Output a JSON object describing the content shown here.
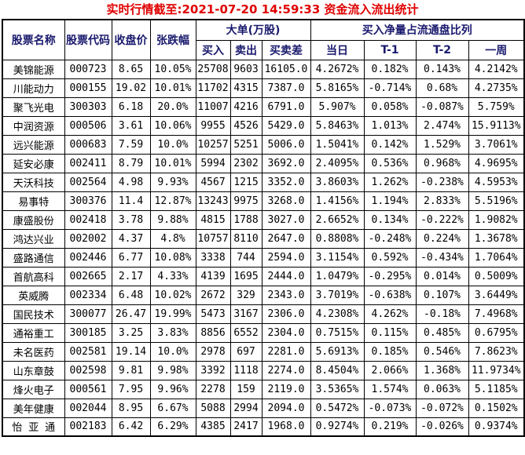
{
  "title": "实时行情截至:2021-07-20 14:59:33 资金流入流出统计",
  "colors": {
    "title_red": "#e00000",
    "header_navy": "#1a1a6e",
    "name_blue": "#1b5e91",
    "code_blue": "#2973ae",
    "border_black": "#000000",
    "data_black": "#000000"
  },
  "table": {
    "headers": {
      "stock_name": "股票名称",
      "stock_code": "股票代码",
      "close_price": "收盘价",
      "change_pct": "张跌幅",
      "big_order_group": "大单(万股)",
      "buy": "买入",
      "sell": "卖出",
      "diff": "买卖差",
      "net_ratio_group": "买入净量占流通盘比列",
      "today": "当日",
      "t1": "T-1",
      "t2": "T-2",
      "week": "一周"
    },
    "rows": [
      [
        "美锦能源",
        "000723",
        "8.65",
        "10.05%",
        "25708",
        "9603",
        "16105.0",
        "4.2672%",
        "0.182%",
        "0.143%",
        "4.2142%"
      ],
      [
        "川能动力",
        "000155",
        "19.02",
        "10.01%",
        "11702",
        "4315",
        "7387.0",
        "5.8165%",
        "-0.714%",
        "0.68%",
        "4.2735%"
      ],
      [
        "聚飞光电",
        "300303",
        "6.18",
        "20.0%",
        "11007",
        "4216",
        "6791.0",
        "5.907%",
        "0.058%",
        "-0.087%",
        "5.759%"
      ],
      [
        "中润资源",
        "000506",
        "3.61",
        "10.06%",
        "9955",
        "4526",
        "5429.0",
        "5.8463%",
        "1.013%",
        "2.474%",
        "15.9113%"
      ],
      [
        "远兴能源",
        "000683",
        "7.59",
        "10.0%",
        "10257",
        "5251",
        "5006.0",
        "1.5041%",
        "0.142%",
        "1.529%",
        "3.7061%"
      ],
      [
        "延安必康",
        "002411",
        "8.79",
        "10.01%",
        "5994",
        "2302",
        "3692.0",
        "2.4095%",
        "0.536%",
        "0.968%",
        "4.9695%"
      ],
      [
        "天沃科技",
        "002564",
        "4.98",
        "9.93%",
        "4567",
        "1215",
        "3352.0",
        "3.8603%",
        "1.262%",
        "-0.238%",
        "4.5953%"
      ],
      [
        "易事特",
        "300376",
        "11.4",
        "12.87%",
        "13243",
        "9975",
        "3268.0",
        "1.4156%",
        "1.194%",
        "2.833%",
        "5.5196%"
      ],
      [
        "康盛股份",
        "002418",
        "3.78",
        "9.88%",
        "4815",
        "1788",
        "3027.0",
        "2.6652%",
        "0.134%",
        "-0.222%",
        "1.9082%"
      ],
      [
        "鸿达兴业",
        "002002",
        "4.37",
        "4.8%",
        "10757",
        "8110",
        "2647.0",
        "0.8808%",
        "-0.248%",
        "0.224%",
        "1.3678%"
      ],
      [
        "盛路通信",
        "002446",
        "6.77",
        "10.08%",
        "3338",
        "744",
        "2594.0",
        "3.1154%",
        "0.592%",
        "-0.434%",
        "1.7064%"
      ],
      [
        "首航高科",
        "002665",
        "2.17",
        "4.33%",
        "4139",
        "1695",
        "2444.0",
        "1.0479%",
        "-0.295%",
        "0.014%",
        "0.5009%"
      ],
      [
        "英威腾",
        "002334",
        "6.48",
        "10.02%",
        "2672",
        "329",
        "2343.0",
        "3.7019%",
        "-0.638%",
        "0.107%",
        "3.6449%"
      ],
      [
        "国民技术",
        "300077",
        "26.47",
        "19.99%",
        "5473",
        "3167",
        "2306.0",
        "4.2308%",
        "4.262%",
        "-0.18%",
        "7.4968%"
      ],
      [
        "通裕重工",
        "300185",
        "3.25",
        "3.83%",
        "8856",
        "6552",
        "2304.0",
        "0.7515%",
        "0.115%",
        "0.485%",
        "0.6795%"
      ],
      [
        "未名医药",
        "002581",
        "19.14",
        "10.0%",
        "2978",
        "697",
        "2281.0",
        "5.6913%",
        "0.185%",
        "0.546%",
        "7.8623%"
      ],
      [
        "山东章鼓",
        "002598",
        "9.81",
        "9.98%",
        "3392",
        "1118",
        "2274.0",
        "8.4504%",
        "2.066%",
        "1.368%",
        "11.9734%"
      ],
      [
        "烽火电子",
        "000561",
        "7.95",
        "9.96%",
        "2278",
        "159",
        "2119.0",
        "3.5365%",
        "1.574%",
        "0.063%",
        "5.1185%"
      ],
      [
        "美年健康",
        "002044",
        "8.95",
        "6.67%",
        "5088",
        "2994",
        "2094.0",
        "0.5472%",
        "-0.073%",
        "-0.072%",
        "0.1502%"
      ],
      [
        "怡 亚 通",
        "002183",
        "6.42",
        "6.29%",
        "4385",
        "2417",
        "1968.0",
        "0.9274%",
        "0.219%",
        "-0.026%",
        "0.9374%"
      ]
    ]
  }
}
